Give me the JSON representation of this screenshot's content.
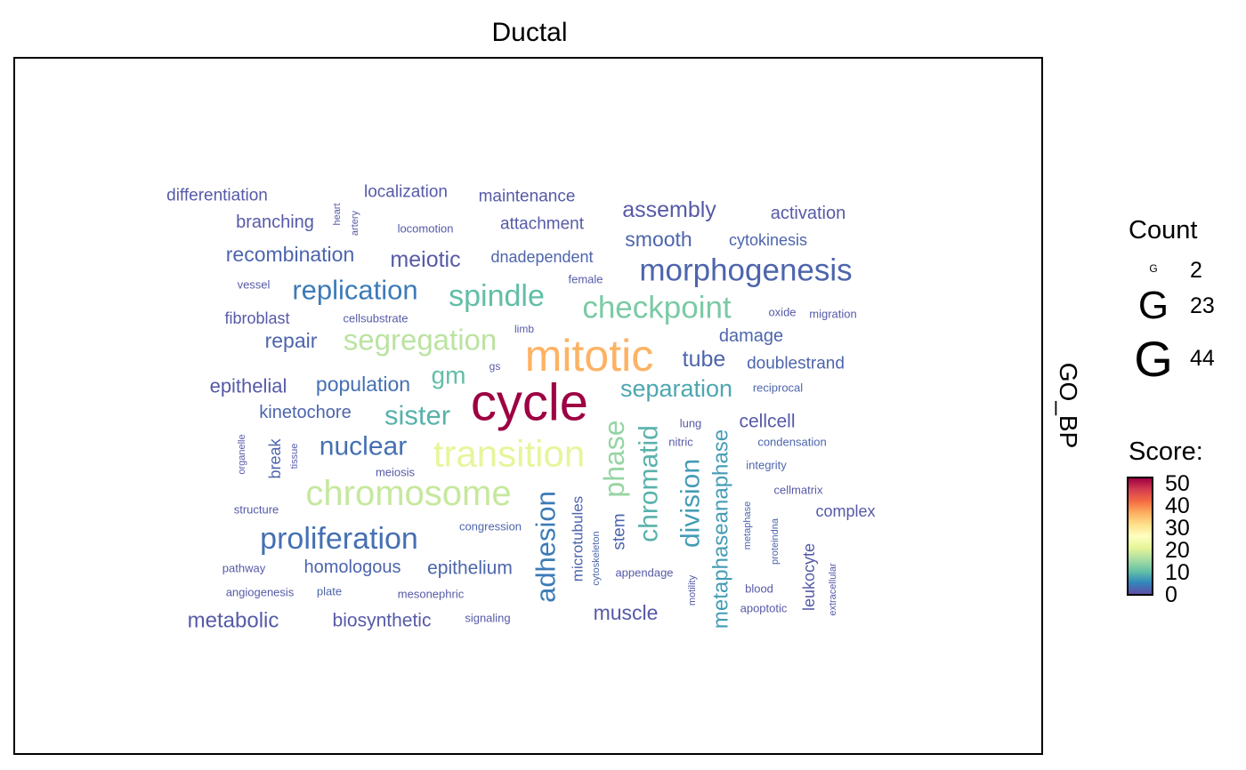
{
  "chart_data": {
    "type": "wordcloud",
    "title": "Ductal",
    "facet_label": "GO_BP",
    "legend": {
      "count": {
        "title": "Count",
        "glyph": "G",
        "entries": [
          2,
          23,
          44
        ]
      },
      "score": {
        "title": "Score:",
        "ticks": [
          0,
          10,
          20,
          30,
          40,
          50
        ],
        "range": [
          0,
          52
        ],
        "colors": [
          "#5E4FA2",
          "#3288BD",
          "#66C2A5",
          "#ABDDA4",
          "#E6F598",
          "#FFFFBF",
          "#FEE08B",
          "#FDAE61",
          "#F46D43",
          "#D53E4F",
          "#9E0142"
        ]
      }
    },
    "words": [
      {
        "text": "cycle",
        "count": 44,
        "score": 52
      },
      {
        "text": "mitotic",
        "count": 36,
        "score": 36
      },
      {
        "text": "transition",
        "count": 31,
        "score": 21
      },
      {
        "text": "chromosome",
        "count": 30,
        "score": 18
      },
      {
        "text": "segregation",
        "count": 24,
        "score": 17
      },
      {
        "text": "checkpoint",
        "count": 25,
        "score": 12
      },
      {
        "text": "morphogenesis",
        "count": 24,
        "score": 2
      },
      {
        "text": "spindle",
        "count": 23,
        "score": 10
      },
      {
        "text": "replication",
        "count": 20,
        "score": 4
      },
      {
        "text": "proliferation",
        "count": 24,
        "score": 3
      },
      {
        "text": "phase",
        "count": 24,
        "score": 14
      },
      {
        "text": "chromatid",
        "count": 20,
        "score": 9
      },
      {
        "text": "division",
        "count": 20,
        "score": 7
      },
      {
        "text": "adhesion",
        "count": 22,
        "score": 4
      },
      {
        "text": "sister",
        "count": 18,
        "score": 9
      },
      {
        "text": "separation",
        "count": 17,
        "score": 8
      },
      {
        "text": "metaphaseanaphase",
        "count": 17,
        "score": 7
      },
      {
        "text": "nuclear",
        "count": 19,
        "score": 3
      },
      {
        "text": "gm",
        "count": 16,
        "score": 10
      },
      {
        "text": "assembly",
        "count": 14,
        "score": 1
      },
      {
        "text": "meiotic",
        "count": 14,
        "score": 1
      },
      {
        "text": "tube",
        "count": 13,
        "score": 2
      },
      {
        "text": "recombination",
        "count": 12,
        "score": 2
      },
      {
        "text": "smooth",
        "count": 12,
        "score": 2
      },
      {
        "text": "population",
        "count": 12,
        "score": 3
      },
      {
        "text": "repair",
        "count": 12,
        "score": 2
      },
      {
        "text": "epithelial",
        "count": 12,
        "score": 1
      },
      {
        "text": "muscle",
        "count": 12,
        "score": 1
      },
      {
        "text": "epithelium",
        "count": 11,
        "score": 2
      },
      {
        "text": "metabolic",
        "count": 12,
        "score": 1
      },
      {
        "text": "biosynthetic",
        "count": 11,
        "score": 1
      },
      {
        "text": "kinetochore",
        "count": 11,
        "score": 2
      },
      {
        "text": "homologous",
        "count": 11,
        "score": 2
      },
      {
        "text": "branching",
        "count": 11,
        "score": 1
      },
      {
        "text": "attachment",
        "count": 11,
        "score": 1
      },
      {
        "text": "stem",
        "count": 11,
        "score": 2
      },
      {
        "text": "cellcell",
        "count": 11,
        "score": 1
      },
      {
        "text": "damage",
        "count": 11,
        "score": 2
      },
      {
        "text": "doublestrand",
        "count": 10,
        "score": 2
      },
      {
        "text": "activation",
        "count": 10,
        "score": 1
      },
      {
        "text": "maintenance",
        "count": 10,
        "score": 1
      },
      {
        "text": "localization",
        "count": 10,
        "score": 1
      },
      {
        "text": "differentiation",
        "count": 10,
        "score": 1
      },
      {
        "text": "cytokinesis",
        "count": 10,
        "score": 2
      },
      {
        "text": "dnadependent",
        "count": 10,
        "score": 2
      },
      {
        "text": "fibroblast",
        "count": 10,
        "score": 1
      },
      {
        "text": "complex",
        "count": 10,
        "score": 1
      },
      {
        "text": "break",
        "count": 10,
        "score": 2
      },
      {
        "text": "microtubules",
        "count": 10,
        "score": 2
      },
      {
        "text": "leukocyte",
        "count": 10,
        "score": 1
      },
      {
        "text": "heart",
        "count": 5,
        "score": 1
      },
      {
        "text": "artery",
        "count": 5,
        "score": 1
      },
      {
        "text": "locomotion",
        "count": 5,
        "score": 1
      },
      {
        "text": "vessel",
        "count": 5,
        "score": 1
      },
      {
        "text": "female",
        "count": 5,
        "score": 1
      },
      {
        "text": "cellsubstrate",
        "count": 5,
        "score": 1
      },
      {
        "text": "oxide",
        "count": 5,
        "score": 1
      },
      {
        "text": "migration",
        "count": 5,
        "score": 1
      },
      {
        "text": "limb",
        "count": 5,
        "score": 1
      },
      {
        "text": "gs",
        "count": 5,
        "score": 1
      },
      {
        "text": "reciprocal",
        "count": 5,
        "score": 2
      },
      {
        "text": "lung",
        "count": 5,
        "score": 1
      },
      {
        "text": "nitric",
        "count": 5,
        "score": 1
      },
      {
        "text": "condensation",
        "count": 5,
        "score": 2
      },
      {
        "text": "organelle",
        "count": 5,
        "score": 1
      },
      {
        "text": "tissue",
        "count": 5,
        "score": 1
      },
      {
        "text": "meiosis",
        "count": 5,
        "score": 1
      },
      {
        "text": "integrity",
        "count": 5,
        "score": 2
      },
      {
        "text": "cellmatrix",
        "count": 5,
        "score": 1
      },
      {
        "text": "structure",
        "count": 5,
        "score": 1
      },
      {
        "text": "congression",
        "count": 5,
        "score": 2
      },
      {
        "text": "metaphase",
        "count": 5,
        "score": 2
      },
      {
        "text": "proteindna",
        "count": 5,
        "score": 2
      },
      {
        "text": "cytoskeleton",
        "count": 5,
        "score": 2
      },
      {
        "text": "pathway",
        "count": 5,
        "score": 1
      },
      {
        "text": "appendage",
        "count": 5,
        "score": 1
      },
      {
        "text": "angiogenesis",
        "count": 5,
        "score": 1
      },
      {
        "text": "plate",
        "count": 5,
        "score": 2
      },
      {
        "text": "mesonephric",
        "count": 5,
        "score": 1
      },
      {
        "text": "blood",
        "count": 5,
        "score": 1
      },
      {
        "text": "extracellular",
        "count": 5,
        "score": 1
      },
      {
        "text": "motility",
        "count": 5,
        "score": 1
      },
      {
        "text": "apoptotic",
        "count": 5,
        "score": 1
      },
      {
        "text": "signaling",
        "count": 5,
        "score": 1
      }
    ]
  }
}
